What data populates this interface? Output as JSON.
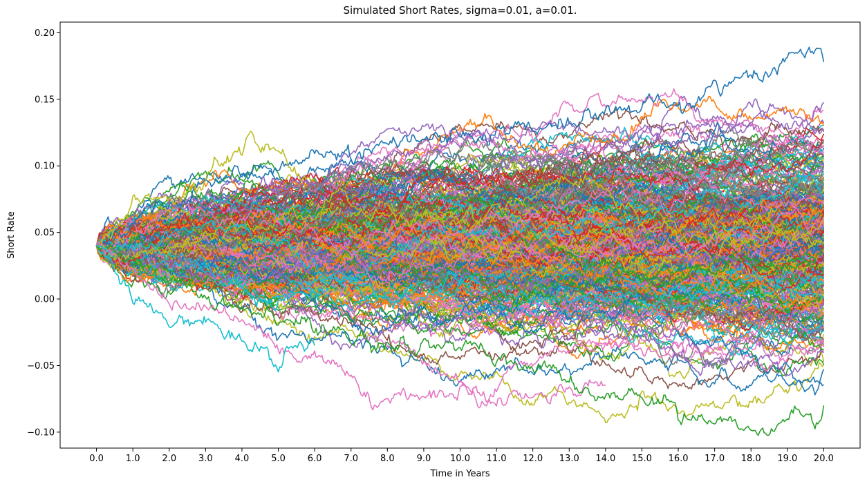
{
  "chart_data": {
    "type": "line",
    "title": "Simulated Short Rates, sigma=0.01, a=0.01.",
    "xlabel": "Time in Years",
    "ylabel": "Short Rate",
    "xlim": [
      -1.0,
      21.0
    ],
    "ylim": [
      -0.112,
      0.208
    ],
    "x_ticks": [
      0.0,
      1.0,
      2.0,
      3.0,
      4.0,
      5.0,
      6.0,
      7.0,
      8.0,
      9.0,
      10.0,
      11.0,
      12.0,
      13.0,
      14.0,
      15.0,
      16.0,
      17.0,
      18.0,
      19.0,
      20.0
    ],
    "x_tick_labels": [
      "0.0",
      "1.0",
      "2.0",
      "3.0",
      "4.0",
      "5.0",
      "6.0",
      "7.0",
      "8.0",
      "9.0",
      "10.0",
      "11.0",
      "12.0",
      "13.0",
      "14.0",
      "15.0",
      "16.0",
      "17.0",
      "18.0",
      "19.0",
      "20.0"
    ],
    "y_ticks": [
      -0.1,
      -0.05,
      0.0,
      0.05,
      0.1,
      0.15,
      0.2
    ],
    "y_tick_labels": [
      "−0.10",
      "−0.05",
      "0.00",
      "0.05",
      "0.10",
      "0.15",
      "0.20"
    ],
    "grid": false,
    "legend": "none",
    "palette": [
      "#1f77b4",
      "#ff7f0e",
      "#2ca02c",
      "#d62728",
      "#9467bd",
      "#8c564b",
      "#e377c2",
      "#7f7f7f",
      "#bcbd22",
      "#17becf"
    ],
    "simulation": {
      "initial_rate": 0.04,
      "horizon_years": 20.0,
      "sigma": 0.01,
      "a": 0.01,
      "mean_level": 0.04,
      "num_paths": 400,
      "steps": 500
    },
    "highlighted_paths": [
      {
        "color": "#1f77b4",
        "x": [
          0,
          2,
          4,
          6,
          8,
          10,
          12,
          13,
          14,
          15,
          16,
          17,
          18,
          19,
          19.8,
          20
        ],
        "y": [
          0.04,
          0.075,
          0.09,
          0.11,
          0.115,
          0.12,
          0.13,
          0.135,
          0.14,
          0.145,
          0.15,
          0.16,
          0.17,
          0.18,
          0.19,
          0.178
        ]
      },
      {
        "color": "#bcbd22",
        "x": [
          0,
          1,
          2,
          3,
          3.5,
          4,
          4.2,
          4.5,
          4.8,
          5,
          5.5,
          6
        ],
        "y": [
          0.04,
          0.065,
          0.08,
          0.09,
          0.105,
          0.11,
          0.117,
          0.11,
          0.115,
          0.108,
          0.095,
          0.09
        ]
      },
      {
        "color": "#e377c2",
        "x": [
          0,
          2,
          4,
          5,
          6,
          7,
          7.6,
          8,
          9,
          10,
          10.5,
          11,
          12,
          13,
          14
        ],
        "y": [
          0.04,
          0.0,
          -0.02,
          -0.04,
          -0.045,
          -0.06,
          -0.08,
          -0.075,
          -0.075,
          -0.065,
          -0.075,
          -0.083,
          -0.075,
          -0.07,
          -0.065
        ]
      },
      {
        "color": "#2ca02c",
        "x": [
          0,
          4,
          8,
          12,
          14,
          16,
          17,
          17.5,
          18,
          18.5,
          19,
          19.5,
          20
        ],
        "y": [
          0.04,
          -0.01,
          -0.03,
          -0.05,
          -0.07,
          -0.08,
          -0.09,
          -0.095,
          -0.09,
          -0.097,
          -0.09,
          -0.088,
          -0.08
        ]
      },
      {
        "color": "#17becf",
        "x": [
          0,
          1,
          2,
          3,
          4,
          5,
          5.5,
          6
        ],
        "y": [
          0.04,
          0.0,
          -0.015,
          -0.02,
          -0.035,
          -0.045,
          -0.04,
          -0.035
        ]
      }
    ]
  }
}
